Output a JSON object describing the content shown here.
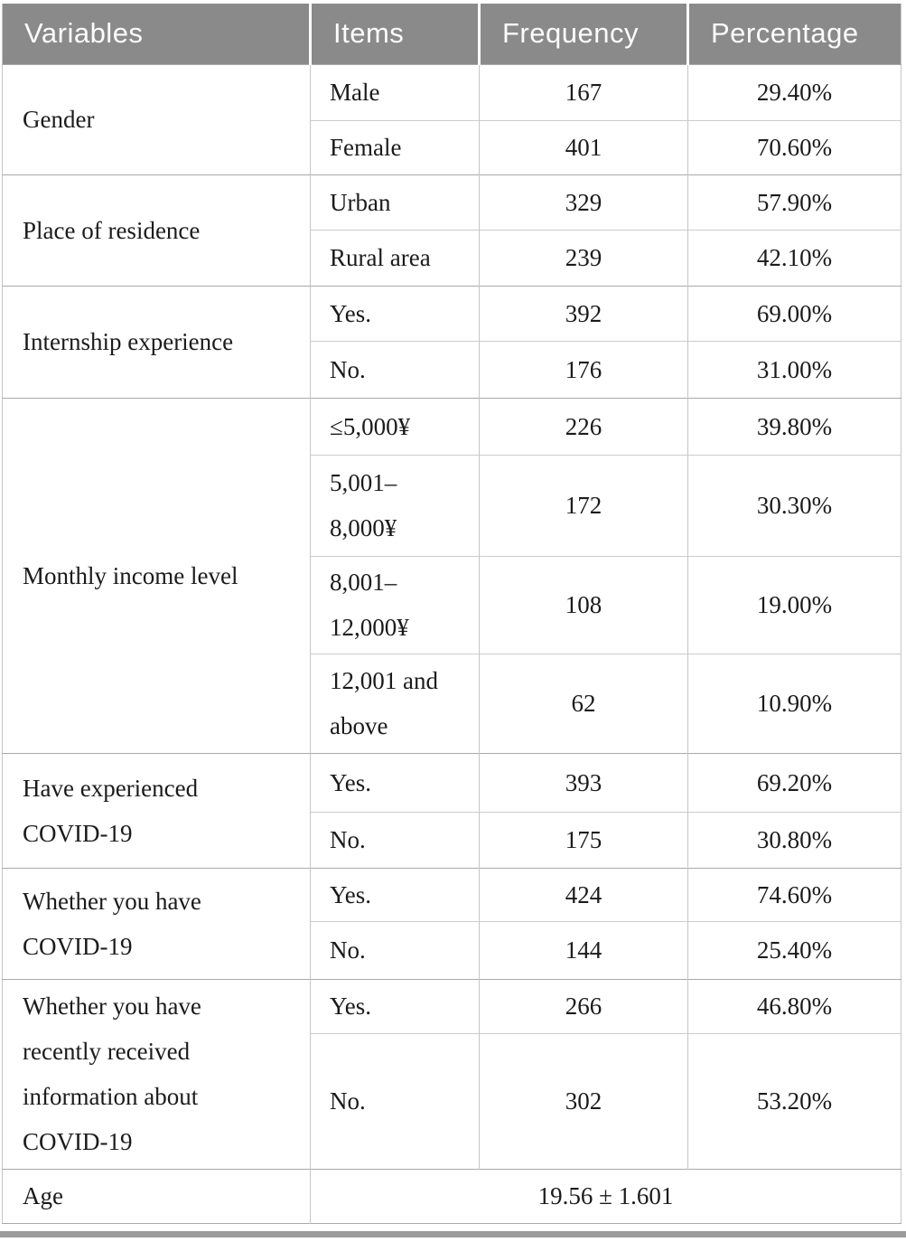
{
  "table": {
    "columns": [
      "Variables",
      "Items",
      "Frequency",
      "Percentage"
    ],
    "groups": [
      {
        "variable": "Gender",
        "items": [
          {
            "label": "Male",
            "frequency": "167",
            "percentage": "29.40%"
          },
          {
            "label": "Female",
            "frequency": "401",
            "percentage": "70.60%"
          }
        ]
      },
      {
        "variable": "Place of residence",
        "items": [
          {
            "label": "Urban",
            "frequency": "329",
            "percentage": "57.90%"
          },
          {
            "label": "Rural area",
            "frequency": "239",
            "percentage": "42.10%"
          }
        ]
      },
      {
        "variable": "Internship experience",
        "items": [
          {
            "label": "Yes.",
            "frequency": "392",
            "percentage": "69.00%"
          },
          {
            "label": "No.",
            "frequency": "176",
            "percentage": "31.00%"
          }
        ]
      },
      {
        "variable": "Monthly income level",
        "items": [
          {
            "label": "≤5,000¥",
            "frequency": "226",
            "percentage": "39.80%"
          },
          {
            "label": "5,001–\n8,000¥",
            "frequency": "172",
            "percentage": "30.30%"
          },
          {
            "label": "8,001–\n12,000¥",
            "frequency": "108",
            "percentage": "19.00%"
          },
          {
            "label": "12,001 and\nabove",
            "frequency": "62",
            "percentage": "10.90%"
          }
        ]
      },
      {
        "variable": "Have experienced\nCOVID-19",
        "items": [
          {
            "label": "Yes.",
            "frequency": "393",
            "percentage": "69.20%"
          },
          {
            "label": "No.",
            "frequency": "175",
            "percentage": "30.80%"
          }
        ]
      },
      {
        "variable": "Whether you have\nCOVID-19",
        "items": [
          {
            "label": "Yes.",
            "frequency": "424",
            "percentage": "74.60%"
          },
          {
            "label": "No.",
            "frequency": "144",
            "percentage": "25.40%"
          }
        ]
      },
      {
        "variable": "Whether you have\nrecently received\ninformation about\nCOVID-19",
        "items": [
          {
            "label": "Yes.",
            "frequency": "266",
            "percentage": "46.80%"
          },
          {
            "label": "No.",
            "frequency": "302",
            "percentage": "53.20%"
          }
        ]
      }
    ],
    "summary": {
      "variable": "Age",
      "value": "19.56 ± 1.601"
    }
  },
  "colors": {
    "header_bg": "#8a8a8a",
    "header_text": "#fcfcfc",
    "body_text": "#1b1b1b",
    "grid_line": "#c6c6c6",
    "group_line": "#a9a9a9",
    "bottom_rule": "#9b9b9b"
  }
}
